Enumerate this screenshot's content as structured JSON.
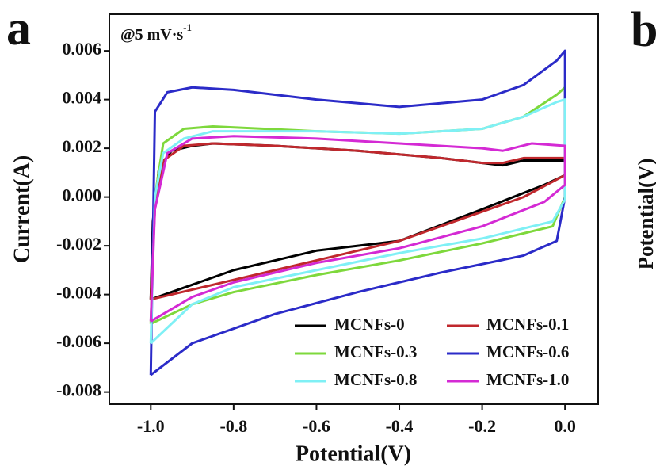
{
  "chart_data": {
    "type": "line",
    "panel_label": "a",
    "next_panel_label": "b",
    "next_panel_ylabel": "Potential(V)",
    "annotation": {
      "text": "@5 mV·s",
      "superscript": "-1"
    },
    "xlabel": "Potential(V)",
    "ylabel": "Current(A)",
    "xlim": [
      -1.1,
      0.08
    ],
    "ylim": [
      -0.0085,
      0.0075
    ],
    "xticks": [
      {
        "value": -1.0,
        "label": "-1.0"
      },
      -0.8,
      -0.6,
      -0.4,
      -0.2,
      {
        "value": 0.0,
        "label": "0.0"
      }
    ],
    "yticks": [
      -0.008,
      -0.006,
      -0.004,
      -0.002,
      {
        "value": 0.0,
        "label": "0.000"
      },
      0.002,
      0.004,
      0.006
    ],
    "legend": "lower right",
    "series": [
      {
        "name": "MCNFs-0",
        "color": "#000000",
        "x": [
          -1.0,
          -0.995,
          -0.98,
          -0.95,
          -0.9,
          -0.85,
          -0.7,
          -0.5,
          -0.3,
          -0.2,
          -0.15,
          -0.1,
          -0.02,
          0.0,
          0.0,
          -0.05,
          -0.2,
          -0.4,
          -0.6,
          -0.8,
          -0.9,
          -1.0
        ],
        "values": [
          -0.0042,
          -0.001,
          0.0012,
          0.0019,
          0.0021,
          0.0022,
          0.0021,
          0.0019,
          0.0016,
          0.0014,
          0.0013,
          0.0015,
          0.0015,
          0.0015,
          0.0009,
          0.0005,
          -0.0005,
          -0.0018,
          -0.0022,
          -0.003,
          -0.0036,
          -0.0042
        ]
      },
      {
        "name": "MCNFs-0.1",
        "color": "#c0282d",
        "x": [
          -1.0,
          -0.99,
          -0.97,
          -0.92,
          -0.85,
          -0.7,
          -0.5,
          -0.3,
          -0.2,
          -0.15,
          -0.1,
          -0.02,
          0.0,
          0.0,
          -0.1,
          -0.2,
          -0.4,
          -0.6,
          -0.8,
          -0.9,
          -1.0
        ],
        "values": [
          -0.0042,
          -0.0005,
          0.0015,
          0.0021,
          0.0022,
          0.0021,
          0.0019,
          0.0016,
          0.0014,
          0.0014,
          0.0016,
          0.0016,
          0.0016,
          0.0009,
          0.0,
          -0.0006,
          -0.0018,
          -0.0026,
          -0.0034,
          -0.0038,
          -0.0042
        ]
      },
      {
        "name": "MCNFs-0.3",
        "color": "#7ed83c",
        "x": [
          -1.0,
          -0.99,
          -0.97,
          -0.92,
          -0.85,
          -0.6,
          -0.4,
          -0.2,
          -0.1,
          -0.02,
          0.0,
          0.0,
          -0.03,
          -0.2,
          -0.4,
          -0.6,
          -0.8,
          -0.9,
          -1.0
        ],
        "values": [
          -0.0052,
          0.0,
          0.0022,
          0.0028,
          0.0029,
          0.0027,
          0.0026,
          0.0028,
          0.0033,
          0.0042,
          0.0045,
          0.0,
          -0.0012,
          -0.0019,
          -0.0026,
          -0.0032,
          -0.0039,
          -0.0044,
          -0.0052
        ]
      },
      {
        "name": "MCNFs-0.6",
        "color": "#2b2bc8",
        "x": [
          -1.0,
          -0.995,
          -0.99,
          -0.96,
          -0.9,
          -0.8,
          -0.6,
          -0.4,
          -0.2,
          -0.1,
          -0.02,
          0.0,
          0.0,
          -0.02,
          -0.1,
          -0.3,
          -0.5,
          -0.7,
          -0.9,
          -1.0
        ],
        "values": [
          -0.0073,
          -0.002,
          0.0035,
          0.0043,
          0.0045,
          0.0044,
          0.004,
          0.0037,
          0.004,
          0.0046,
          0.0056,
          0.006,
          0.0,
          -0.0018,
          -0.0024,
          -0.0031,
          -0.0039,
          -0.0048,
          -0.006,
          -0.0073
        ]
      },
      {
        "name": "MCNFs-0.8",
        "color": "#7ff0f5",
        "x": [
          -1.0,
          -0.99,
          -0.97,
          -0.92,
          -0.85,
          -0.6,
          -0.4,
          -0.2,
          -0.1,
          -0.02,
          0.0,
          0.0,
          -0.03,
          -0.2,
          -0.4,
          -0.6,
          -0.8,
          -0.9,
          -1.0
        ],
        "values": [
          -0.006,
          0.0,
          0.0018,
          0.0024,
          0.0027,
          0.0027,
          0.0026,
          0.0028,
          0.0033,
          0.0039,
          0.004,
          -0.0001,
          -0.001,
          -0.0017,
          -0.0023,
          -0.003,
          -0.0037,
          -0.0044,
          -0.006
        ]
      },
      {
        "name": "MCNFs-1.0",
        "color": "#d42ad4",
        "x": [
          -1.0,
          -0.99,
          -0.96,
          -0.9,
          -0.8,
          -0.6,
          -0.4,
          -0.2,
          -0.15,
          -0.08,
          0.0,
          0.0,
          -0.05,
          -0.2,
          -0.4,
          -0.6,
          -0.8,
          -0.9,
          -1.0
        ],
        "values": [
          -0.0051,
          -0.0005,
          0.0018,
          0.0024,
          0.0025,
          0.0024,
          0.0022,
          0.002,
          0.0019,
          0.0022,
          0.0021,
          0.0005,
          -0.0002,
          -0.0012,
          -0.0021,
          -0.0027,
          -0.0035,
          -0.0041,
          -0.0051
        ]
      }
    ]
  }
}
